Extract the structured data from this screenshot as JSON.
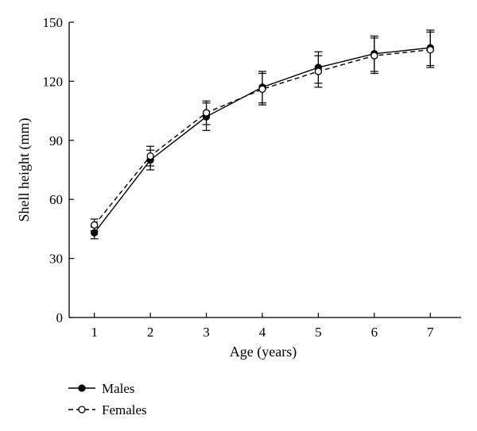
{
  "chart_data": {
    "type": "line",
    "title": "",
    "xlabel": "Age (years)",
    "ylabel": "Shell height (mm)",
    "x": [
      1,
      2,
      3,
      4,
      5,
      6,
      7
    ],
    "xlim": [
      0.55,
      7.55
    ],
    "ylim": [
      0,
      150
    ],
    "xticks": [
      1,
      2,
      3,
      4,
      5,
      6,
      7
    ],
    "yticks": [
      0,
      30,
      60,
      90,
      120,
      150
    ],
    "grid": false,
    "legend": "bottom-left",
    "series": [
      {
        "name": "Males",
        "marker": "filled-circle",
        "line": "solid",
        "color": "#000000",
        "values": [
          43,
          80,
          102,
          117,
          127,
          134,
          137
        ],
        "errors": [
          3,
          5,
          7,
          8,
          8,
          9,
          9
        ]
      },
      {
        "name": "Females",
        "marker": "open-circle",
        "line": "dashed",
        "color": "#000000",
        "values": [
          47,
          82,
          104,
          116,
          125,
          133,
          136
        ],
        "errors": [
          3,
          5,
          6,
          8,
          8,
          9,
          9
        ]
      }
    ]
  }
}
